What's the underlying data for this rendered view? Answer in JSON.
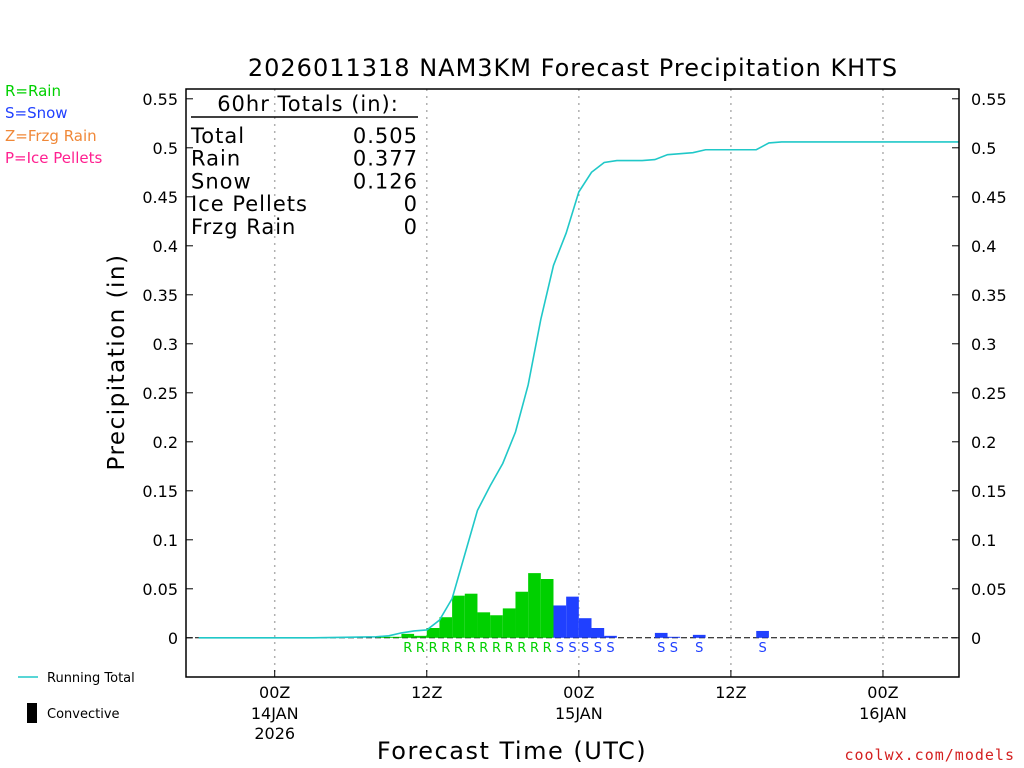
{
  "chart_data": {
    "type": "bar",
    "title": "2026011318 NAM3KM Forecast Precipitation KHTS",
    "xlabel": "Forecast Time (UTC)",
    "ylabel": "Precipitation (in)",
    "ylim": [
      -0.04,
      0.56
    ],
    "y_ticks": [
      0,
      0.05,
      0.1,
      0.15,
      0.2,
      0.25,
      0.3,
      0.35,
      0.4,
      0.45,
      0.5,
      0.55
    ],
    "y_tick_labels": [
      "0",
      "0.05",
      "0.1",
      "0.15",
      "0.2",
      "0.25",
      "0.3",
      "0.35",
      "0.4",
      "0.45",
      "0.5",
      "0.55"
    ],
    "x_unit": "hours since 2026-01-13 18Z",
    "xlim": [
      -1,
      60
    ],
    "x_ticks": [
      {
        "hour": 6,
        "label": "00Z",
        "sub1": "14JAN",
        "sub2": "2026"
      },
      {
        "hour": 18,
        "label": "12Z",
        "sub1": "",
        "sub2": ""
      },
      {
        "hour": 30,
        "label": "00Z",
        "sub1": "15JAN",
        "sub2": ""
      },
      {
        "hour": 42,
        "label": "12Z",
        "sub1": "",
        "sub2": ""
      },
      {
        "hour": 54,
        "label": "00Z",
        "sub1": "16JAN",
        "sub2": ""
      }
    ],
    "series_colors": {
      "R": "#00d000",
      "S": "#2040ff",
      "Z": "#f08838",
      "P": "#ff2090"
    },
    "bars": [
      {
        "hour": 15,
        "value": 0.001,
        "type": "R"
      },
      {
        "hour": 16,
        "value": 0.001,
        "type": "R"
      },
      {
        "hour": 17,
        "value": 0.004,
        "type": "R"
      },
      {
        "hour": 18,
        "value": 0.002,
        "type": "R"
      },
      {
        "hour": 19,
        "value": 0.01,
        "type": "R"
      },
      {
        "hour": 20,
        "value": 0.021,
        "type": "R"
      },
      {
        "hour": 21,
        "value": 0.043,
        "type": "R"
      },
      {
        "hour": 22,
        "value": 0.045,
        "type": "R"
      },
      {
        "hour": 23,
        "value": 0.026,
        "type": "R"
      },
      {
        "hour": 24,
        "value": 0.023,
        "type": "R"
      },
      {
        "hour": 25,
        "value": 0.03,
        "type": "R"
      },
      {
        "hour": 26,
        "value": 0.047,
        "type": "R"
      },
      {
        "hour": 27,
        "value": 0.066,
        "type": "R"
      },
      {
        "hour": 28,
        "value": 0.06,
        "type": "R"
      },
      {
        "hour": 29,
        "value": 0.033,
        "type": "S"
      },
      {
        "hour": 30,
        "value": 0.042,
        "type": "S"
      },
      {
        "hour": 31,
        "value": 0.02,
        "type": "S"
      },
      {
        "hour": 32,
        "value": 0.01,
        "type": "S"
      },
      {
        "hour": 33,
        "value": 0.002,
        "type": "S"
      },
      {
        "hour": 37,
        "value": 0.005,
        "type": "S"
      },
      {
        "hour": 38,
        "value": 0.001,
        "type": "S"
      },
      {
        "hour": 40,
        "value": 0.003,
        "type": "S"
      },
      {
        "hour": 45,
        "value": 0.007,
        "type": "S"
      }
    ],
    "type_marks": [
      {
        "hour": 17,
        "label": "R"
      },
      {
        "hour": 18,
        "label": "R"
      },
      {
        "hour": 19,
        "label": "R"
      },
      {
        "hour": 20,
        "label": "R"
      },
      {
        "hour": 21,
        "label": "R"
      },
      {
        "hour": 22,
        "label": "R"
      },
      {
        "hour": 23,
        "label": "R"
      },
      {
        "hour": 24,
        "label": "R"
      },
      {
        "hour": 25,
        "label": "R"
      },
      {
        "hour": 26,
        "label": "R"
      },
      {
        "hour": 27,
        "label": "R"
      },
      {
        "hour": 28,
        "label": "R"
      },
      {
        "hour": 29,
        "label": "S"
      },
      {
        "hour": 30,
        "label": "S"
      },
      {
        "hour": 31,
        "label": "S"
      },
      {
        "hour": 32,
        "label": "S"
      },
      {
        "hour": 33,
        "label": "S"
      },
      {
        "hour": 37,
        "label": "S"
      },
      {
        "hour": 38,
        "label": "S"
      },
      {
        "hour": 40,
        "label": "S"
      },
      {
        "hour": 45,
        "label": "S"
      }
    ],
    "running_total": {
      "name": "Running Total",
      "color": "#20c8c8",
      "points": [
        [
          0,
          0
        ],
        [
          9,
          0
        ],
        [
          14,
          0.001
        ],
        [
          15,
          0.002
        ],
        [
          16,
          0.005
        ],
        [
          17,
          0.007
        ],
        [
          18,
          0.008
        ],
        [
          19,
          0.018
        ],
        [
          20,
          0.04
        ],
        [
          21,
          0.085
        ],
        [
          22,
          0.13
        ],
        [
          23,
          0.155
        ],
        [
          24,
          0.178
        ],
        [
          25,
          0.21
        ],
        [
          26,
          0.258
        ],
        [
          27,
          0.325
        ],
        [
          28,
          0.38
        ],
        [
          29,
          0.413
        ],
        [
          30,
          0.455
        ],
        [
          31,
          0.475
        ],
        [
          32,
          0.485
        ],
        [
          33,
          0.487
        ],
        [
          34,
          0.487
        ],
        [
          35,
          0.487
        ],
        [
          36,
          0.488
        ],
        [
          37,
          0.493
        ],
        [
          38,
          0.494
        ],
        [
          39,
          0.495
        ],
        [
          40,
          0.498
        ],
        [
          42,
          0.498
        ],
        [
          44,
          0.498
        ],
        [
          45,
          0.505
        ],
        [
          46,
          0.506
        ],
        [
          60,
          0.506
        ]
      ]
    },
    "totals": {
      "header": "60hr Totals (in):",
      "rows": [
        {
          "label": "Total",
          "value": "0.505"
        },
        {
          "label": "Rain",
          "value": "0.377"
        },
        {
          "label": "Snow",
          "value": "0.126"
        },
        {
          "label": "Ice Pellets",
          "value": "0"
        },
        {
          "label": "Frzg Rain",
          "value": "0"
        }
      ]
    },
    "legend": {
      "types": [
        {
          "text": "R=Rain",
          "color": "#00d000"
        },
        {
          "text": "S=Snow",
          "color": "#2040ff"
        },
        {
          "text": "Z=Frzg Rain",
          "color": "#f08838"
        },
        {
          "text": "P=Ice Pellets",
          "color": "#ff2090"
        }
      ],
      "line_label": "Running Total",
      "convective_label": "Convective"
    },
    "grid": true
  },
  "credit": "coolwx.com/models"
}
